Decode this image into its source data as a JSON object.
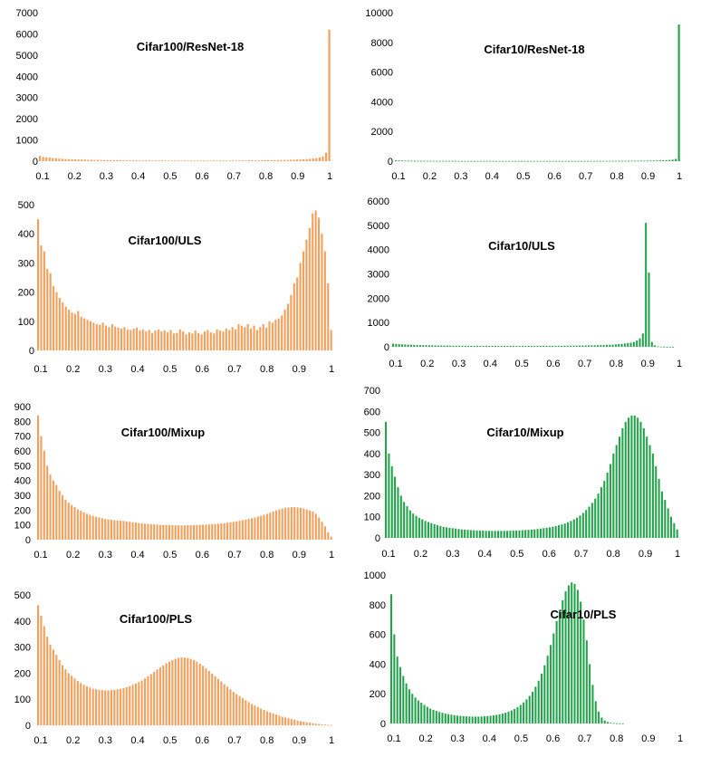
{
  "chart_data": [
    {
      "type": "bar",
      "title": "Cifar100/ResNet-18",
      "color": "#F4A05C",
      "ylim": [
        0,
        7000
      ],
      "yticks": [
        0,
        1000,
        2000,
        3000,
        4000,
        5000,
        6000,
        7000
      ],
      "xticks": [
        "0.1",
        "0.2",
        "0.3",
        "0.4",
        "0.5",
        "0.6",
        "0.7",
        "0.8",
        "0.9",
        "1"
      ],
      "bin_range": [
        0.1,
        1.0
      ],
      "values": [
        250,
        200,
        180,
        170,
        150,
        140,
        120,
        110,
        100,
        95,
        90,
        85,
        80,
        80,
        75,
        70,
        65,
        60,
        60,
        55,
        55,
        50,
        50,
        48,
        45,
        44,
        42,
        40,
        40,
        38,
        38,
        36,
        35,
        35,
        34,
        33,
        32,
        32,
        31,
        30,
        30,
        30,
        29,
        29,
        28,
        28,
        28,
        27,
        27,
        27,
        27,
        27,
        27,
        27,
        28,
        28,
        28,
        29,
        29,
        30,
        30,
        31,
        32,
        33,
        34,
        35,
        36,
        38,
        40,
        42,
        44,
        46,
        48,
        50,
        52,
        55,
        58,
        62,
        66,
        70,
        75,
        80,
        90,
        100,
        110,
        125,
        145,
        170,
        220,
        400,
        6200
      ]
    },
    {
      "type": "bar",
      "title": "Cifar10/ResNet-18",
      "color": "#22A44A",
      "ylim": [
        0,
        10000
      ],
      "yticks": [
        0,
        2000,
        4000,
        6000,
        8000,
        10000
      ],
      "xticks": [
        "0.1",
        "0.2",
        "0.3",
        "0.4",
        "0.5",
        "0.6",
        "0.7",
        "0.8",
        "0.9",
        "1"
      ],
      "bin_range": [
        0.1,
        1.0
      ],
      "values": [
        60,
        50,
        40,
        35,
        30,
        28,
        26,
        25,
        24,
        23,
        22,
        21,
        20,
        20,
        19,
        19,
        18,
        18,
        18,
        17,
        17,
        17,
        17,
        17,
        16,
        16,
        16,
        16,
        16,
        16,
        16,
        16,
        16,
        16,
        16,
        16,
        16,
        16,
        16,
        16,
        16,
        16,
        16,
        16,
        16,
        16,
        16,
        16,
        16,
        16,
        16,
        16,
        16,
        16,
        16,
        16,
        16,
        16,
        16,
        17,
        17,
        17,
        17,
        18,
        18,
        18,
        19,
        19,
        20,
        20,
        21,
        22,
        23,
        24,
        25,
        26,
        28,
        30,
        32,
        34,
        36,
        40,
        44,
        48,
        55,
        62,
        70,
        80,
        100,
        150,
        9200
      ]
    },
    {
      "type": "bar",
      "title": "Cifar100/ULS",
      "color": "#F4A05C",
      "ylim": [
        0,
        500
      ],
      "yticks": [
        0,
        100,
        200,
        300,
        400,
        500
      ],
      "xticks": [
        "0.1",
        "0.2",
        "0.3",
        "0.4",
        "0.5",
        "0.6",
        "0.7",
        "0.8",
        "0.9",
        "1"
      ],
      "bin_range": [
        0.1,
        1.0
      ],
      "values": [
        450,
        360,
        340,
        280,
        265,
        220,
        200,
        180,
        165,
        150,
        140,
        130,
        125,
        135,
        115,
        110,
        105,
        100,
        95,
        90,
        88,
        95,
        85,
        80,
        90,
        82,
        78,
        75,
        80,
        72,
        70,
        75,
        78,
        68,
        72,
        65,
        70,
        60,
        68,
        72,
        65,
        68,
        62,
        70,
        58,
        60,
        72,
        65,
        55,
        62,
        58,
        68,
        60,
        55,
        65,
        70,
        62,
        58,
        72,
        68,
        65,
        75,
        70,
        80,
        72,
        90,
        85,
        80,
        90,
        75,
        85,
        70,
        80,
        90,
        78,
        100,
        95,
        105,
        110,
        120,
        140,
        160,
        190,
        230,
        250,
        300,
        340,
        380,
        420,
        470,
        480,
        455,
        400,
        340,
        230,
        70
      ]
    },
    {
      "type": "bar",
      "title": "Cifar10/ULS",
      "color": "#22A44A",
      "ylim": [
        0,
        6000
      ],
      "yticks": [
        0,
        1000,
        2000,
        3000,
        4000,
        5000,
        6000
      ],
      "xticks": [
        "0.1",
        "0.2",
        "0.3",
        "0.4",
        "0.5",
        "0.6",
        "0.7",
        "0.8",
        "0.9",
        "1"
      ],
      "bin_range": [
        0.1,
        1.0
      ],
      "values": [
        130,
        120,
        110,
        100,
        95,
        90,
        85,
        80,
        75,
        70,
        68,
        65,
        62,
        60,
        58,
        56,
        54,
        52,
        50,
        48,
        47,
        46,
        45,
        44,
        43,
        42,
        41,
        40,
        40,
        39,
        39,
        38,
        38,
        37,
        37,
        37,
        36,
        36,
        36,
        36,
        36,
        36,
        36,
        36,
        36,
        36,
        37,
        37,
        37,
        38,
        38,
        39,
        40,
        40,
        41,
        42,
        43,
        44,
        45,
        46,
        48,
        50,
        52,
        54,
        56,
        58,
        60,
        63,
        66,
        70,
        75,
        80,
        85,
        90,
        100,
        110,
        120,
        135,
        150,
        170,
        200,
        260,
        350,
        550,
        5100,
        3050,
        200,
        60,
        20,
        10,
        5,
        3,
        2,
        1,
        0,
        0
      ]
    },
    {
      "type": "bar",
      "title": "Cifar100/Mixup",
      "color": "#F4A05C",
      "ylim": [
        0,
        900
      ],
      "yticks": [
        0,
        100,
        200,
        300,
        400,
        500,
        600,
        700,
        800,
        900
      ],
      "xticks": [
        "0.1",
        "0.2",
        "0.3",
        "0.4",
        "0.5",
        "0.6",
        "0.7",
        "0.8",
        "0.9",
        "1"
      ],
      "bin_range": [
        0.1,
        1.0
      ],
      "values": [
        840,
        700,
        600,
        500,
        440,
        400,
        370,
        330,
        300,
        270,
        250,
        235,
        220,
        205,
        195,
        185,
        175,
        168,
        160,
        155,
        150,
        145,
        140,
        138,
        135,
        132,
        130,
        128,
        126,
        124,
        120,
        118,
        115,
        112,
        110,
        108,
        106,
        105,
        104,
        102,
        100,
        100,
        99,
        98,
        98,
        97,
        97,
        97,
        97,
        98,
        98,
        99,
        100,
        100,
        101,
        102,
        103,
        105,
        106,
        108,
        110,
        112,
        115,
        118,
        120,
        124,
        128,
        132,
        136,
        140,
        145,
        150,
        156,
        162,
        168,
        175,
        182,
        190,
        198,
        205,
        210,
        215,
        218,
        220,
        220,
        218,
        215,
        210,
        205,
        198,
        190,
        175,
        150,
        120,
        90,
        50,
        20
      ]
    },
    {
      "type": "bar",
      "title": "Cifar10/Mixup",
      "color": "#22A44A",
      "ylim": [
        0,
        700
      ],
      "yticks": [
        0,
        100,
        200,
        300,
        400,
        500,
        600,
        700
      ],
      "xticks": [
        "0.1",
        "0.2",
        "0.3",
        "0.4",
        "0.5",
        "0.6",
        "0.7",
        "0.8",
        "0.9",
        "1"
      ],
      "bin_range": [
        0.1,
        1.0
      ],
      "values": [
        550,
        400,
        340,
        290,
        240,
        200,
        170,
        150,
        130,
        115,
        105,
        95,
        88,
        80,
        75,
        70,
        65,
        60,
        56,
        52,
        50,
        48,
        46,
        44,
        42,
        40,
        39,
        38,
        37,
        36,
        35,
        34,
        34,
        33,
        33,
        33,
        33,
        33,
        33,
        33,
        33,
        34,
        34,
        35,
        35,
        36,
        37,
        38,
        39,
        40,
        42,
        44,
        46,
        48,
        50,
        53,
        56,
        60,
        64,
        68,
        74,
        80,
        88,
        96,
        106,
        118,
        132,
        148,
        166,
        186,
        210,
        240,
        270,
        310,
        350,
        400,
        440,
        480,
        520,
        550,
        570,
        580,
        580,
        570,
        550,
        520,
        480,
        440,
        400,
        340,
        280,
        220,
        180,
        140,
        100,
        70,
        40
      ]
    },
    {
      "type": "bar",
      "title": "Cifar100/PLS",
      "color": "#F4A05C",
      "ylim": [
        0,
        500
      ],
      "yticks": [
        0,
        100,
        200,
        300,
        400,
        500
      ],
      "xticks": [
        "0.1",
        "0.2",
        "0.3",
        "0.4",
        "0.5",
        "0.6",
        "0.7",
        "0.8",
        "0.9",
        "1"
      ],
      "bin_range": [
        0.1,
        1.0
      ],
      "values": [
        460,
        420,
        380,
        340,
        310,
        290,
        270,
        250,
        230,
        215,
        200,
        190,
        180,
        170,
        162,
        155,
        150,
        145,
        140,
        138,
        136,
        135,
        134,
        134,
        135,
        136,
        138,
        140,
        143,
        146,
        150,
        155,
        160,
        166,
        172,
        180,
        188,
        196,
        205,
        214,
        222,
        230,
        238,
        244,
        250,
        255,
        258,
        260,
        260,
        258,
        255,
        250,
        244,
        236,
        228,
        218,
        208,
        198,
        188,
        178,
        168,
        158,
        148,
        138,
        128,
        120,
        112,
        104,
        96,
        89,
        82,
        76,
        70,
        64,
        59,
        54,
        49,
        45,
        41,
        37,
        33,
        30,
        27,
        24,
        21,
        18,
        16,
        14,
        12,
        10,
        8,
        6,
        5,
        4,
        3,
        2,
        1
      ]
    },
    {
      "type": "bar",
      "title": "Cifar10/PLS",
      "color": "#22A44A",
      "ylim": [
        0,
        1000
      ],
      "yticks": [
        0,
        200,
        400,
        600,
        800,
        1000
      ],
      "xticks": [
        "0.1",
        "0.2",
        "0.3",
        "0.4",
        "0.5",
        "0.6",
        "0.7",
        "0.8",
        "0.9",
        "1"
      ],
      "bin_range": [
        0.1,
        1.0
      ],
      "values": [
        870,
        600,
        450,
        380,
        320,
        270,
        230,
        200,
        175,
        155,
        140,
        125,
        112,
        100,
        92,
        85,
        78,
        72,
        67,
        63,
        59,
        56,
        53,
        51,
        49,
        48,
        47,
        46,
        46,
        46,
        47,
        48,
        50,
        52,
        55,
        58,
        62,
        67,
        73,
        80,
        88,
        98,
        110,
        125,
        142,
        162,
        186,
        214,
        248,
        288,
        336,
        392,
        456,
        528,
        606,
        690,
        760,
        830,
        890,
        930,
        950,
        940,
        900,
        820,
        700,
        560,
        400,
        260,
        150,
        80,
        40,
        20,
        10,
        5,
        3,
        2,
        1,
        1,
        0,
        0,
        0,
        0,
        0,
        0,
        0,
        0,
        0,
        0,
        0,
        0,
        0,
        0,
        0,
        0,
        0,
        0,
        0
      ]
    }
  ]
}
